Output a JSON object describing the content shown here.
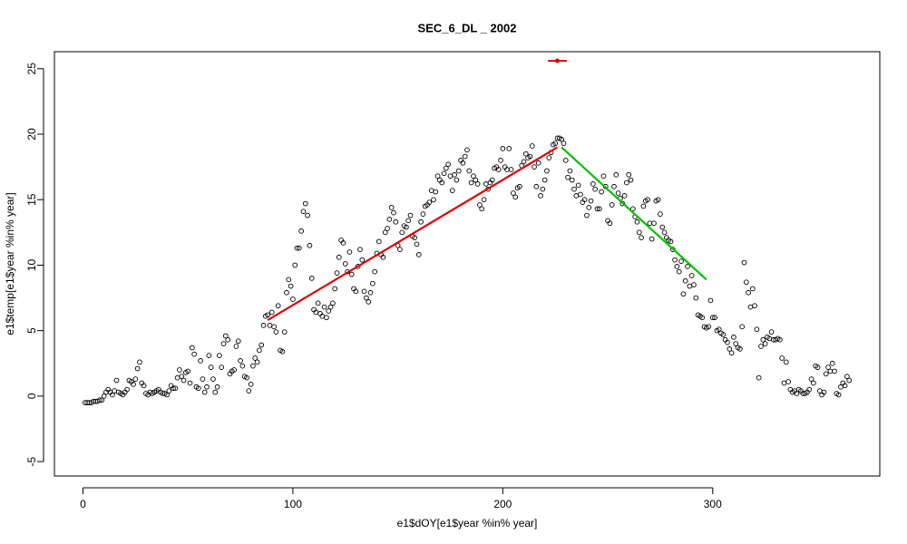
{
  "chart_data": {
    "type": "scatter",
    "title": "SEC_6_DL _ 2002",
    "x_label": "e1$dOY[e1$year %in% year]",
    "y_label": "e1$temp[e1$year %in% year]",
    "point_color": "#000000",
    "x": [
      1,
      2,
      3,
      4,
      5,
      6,
      7,
      8,
      9,
      10,
      11,
      12,
      13,
      14,
      15,
      16,
      17,
      18,
      19,
      20,
      21,
      22,
      23,
      24,
      25,
      26,
      27,
      28,
      29,
      30,
      31,
      32,
      33,
      34,
      35,
      36,
      37,
      38,
      39,
      40,
      41,
      42,
      43,
      44,
      45,
      46,
      47,
      48,
      49,
      50,
      51,
      52,
      53,
      54,
      55,
      56,
      57,
      58,
      59,
      60,
      61,
      62,
      63,
      64,
      65,
      66,
      67,
      68,
      69,
      70,
      71,
      72,
      73,
      74,
      75,
      76,
      77,
      78,
      79,
      80,
      81,
      82,
      83,
      84,
      85,
      86,
      87,
      88,
      89,
      90,
      91,
      92,
      93,
      94,
      95,
      96,
      97,
      98,
      99,
      100,
      101,
      102,
      103,
      104,
      105,
      106,
      107,
      108,
      109,
      110,
      111,
      112,
      113,
      114,
      115,
      116,
      117,
      118,
      119,
      120,
      121,
      122,
      123,
      124,
      125,
      126,
      127,
      128,
      129,
      130,
      131,
      132,
      133,
      134,
      135,
      136,
      137,
      138,
      139,
      140,
      141,
      142,
      143,
      144,
      145,
      146,
      147,
      148,
      149,
      150,
      151,
      152,
      153,
      154,
      155,
      156,
      157,
      158,
      159,
      160,
      161,
      162,
      163,
      164,
      165,
      166,
      167,
      168,
      169,
      170,
      171,
      172,
      173,
      174,
      175,
      176,
      177,
      178,
      179,
      180,
      181,
      182,
      183,
      184,
      185,
      186,
      187,
      188,
      189,
      190,
      191,
      192,
      193,
      194,
      195,
      196,
      197,
      198,
      199,
      200,
      201,
      202,
      203,
      204,
      205,
      206,
      207,
      208,
      209,
      210,
      211,
      212,
      213,
      214,
      215,
      216,
      217,
      218,
      219,
      220,
      221,
      222,
      223,
      224,
      225,
      226,
      227,
      228,
      229,
      230,
      231,
      232,
      233,
      234,
      235,
      236,
      237,
      238,
      239,
      240,
      241,
      242,
      243,
      244,
      245,
      246,
      247,
      248,
      249,
      250,
      251,
      252,
      253,
      254,
      255,
      256,
      257,
      258,
      259,
      260,
      261,
      262,
      263,
      264,
      265,
      266,
      267,
      268,
      269,
      270,
      271,
      272,
      273,
      274,
      275,
      276,
      277,
      278,
      279,
      280,
      281,
      282,
      283,
      284,
      285,
      286,
      287,
      288,
      289,
      290,
      291,
      292,
      293,
      294,
      295,
      296,
      297,
      298,
      299,
      300,
      301,
      302,
      303,
      304,
      305,
      306,
      307,
      308,
      309,
      310,
      311,
      312,
      313,
      314,
      315,
      316,
      317,
      318,
      319,
      320,
      321,
      322,
      323,
      324,
      325,
      326,
      327,
      328,
      329,
      330,
      331,
      332,
      333,
      334,
      335,
      336,
      337,
      338,
      339,
      340,
      341,
      342,
      343,
      344,
      345,
      346,
      347,
      348,
      349,
      350,
      351,
      352,
      353,
      354,
      355,
      356,
      357,
      358,
      359,
      360,
      361,
      362,
      363,
      364,
      365
    ],
    "values": [
      -0.5,
      -0.5,
      -0.5,
      -0.5,
      -0.4,
      -0.4,
      -0.4,
      -0.3,
      -0.3,
      0.0,
      0.3,
      0.5,
      0.3,
      0.1,
      0.4,
      1.2,
      0.3,
      0.2,
      0.1,
      0.3,
      0.5,
      1.2,
      1.1,
      0.9,
      1.3,
      2.1,
      2.6,
      1.0,
      0.8,
      0.2,
      0.1,
      0.3,
      0.2,
      0.3,
      0.4,
      0.5,
      0.3,
      0.2,
      0.2,
      0.1,
      0.4,
      0.8,
      0.6,
      0.6,
      1.4,
      2.0,
      1.5,
      1.2,
      1.8,
      1.9,
      1.0,
      3.7,
      3.2,
      0.7,
      0.6,
      2.7,
      1.3,
      0.3,
      0.7,
      3.1,
      2.2,
      1.3,
      0.3,
      0.7,
      3.1,
      2.2,
      4.0,
      4.6,
      4.3,
      1.7,
      1.9,
      2.0,
      3.8,
      4.2,
      2.7,
      2.3,
      1.5,
      1.4,
      0.4,
      0.9,
      2.3,
      2.9,
      2.6,
      3.5,
      3.9,
      5.4,
      6.1,
      6.2,
      5.4,
      6.4,
      5.3,
      4.9,
      6.9,
      3.5,
      3.4,
      4.9,
      7.9,
      8.9,
      8.4,
      7.4,
      10.0,
      11.3,
      11.3,
      12.6,
      14.1,
      14.7,
      13.8,
      11.5,
      9.0,
      6.6,
      6.4,
      7.1,
      6.3,
      6.1,
      6.8,
      6.0,
      6.5,
      6.8,
      7.1,
      8.2,
      9.4,
      10.6,
      11.9,
      11.7,
      10.1,
      9.5,
      11.0,
      9.3,
      8.2,
      8.0,
      9.9,
      11.2,
      10.4,
      8.0,
      7.5,
      7.2,
      7.9,
      8.6,
      9.5,
      10.9,
      11.8,
      10.8,
      10.6,
      12.5,
      12.8,
      13.5,
      14.4,
      14.0,
      13.3,
      11.5,
      11.2,
      12.5,
      13.0,
      12.9,
      13.4,
      13.8,
      12.2,
      12.1,
      11.6,
      10.8,
      13.3,
      13.9,
      14.5,
      14.6,
      14.8,
      15.7,
      15.0,
      15.6,
      16.8,
      16.5,
      16.3,
      17.0,
      17.4,
      17.7,
      16.8,
      15.7,
      16.9,
      16.5,
      17.2,
      18.0,
      17.8,
      18.3,
      18.8,
      17.2,
      16.3,
      16.8,
      16.5,
      16.2,
      14.6,
      14.3,
      15.0,
      16.2,
      15.8,
      16.3,
      16.5,
      17.4,
      17.5,
      17.3,
      18.0,
      18.9,
      17.5,
      17.3,
      18.9,
      17.3,
      15.5,
      15.2,
      15.9,
      16.0,
      17.6,
      17.9,
      18.5,
      18.2,
      18.3,
      19.1,
      17.5,
      16.0,
      17.8,
      15.3,
      15.8,
      16.5,
      17.2,
      18.2,
      18.6,
      19.2,
      19.3,
      19.7,
      19.7,
      19.6,
      19.3,
      18.0,
      16.7,
      17.2,
      16.5,
      15.8,
      15.3,
      16.1,
      15.4,
      14.8,
      15.0,
      13.8,
      14.4,
      14.9,
      16.2,
      15.8,
      14.3,
      14.3,
      15.6,
      16.8,
      16.0,
      13.4,
      13.2,
      14.6,
      16.0,
      16.9,
      15.5,
      15.1,
      14.7,
      15.3,
      16.3,
      16.9,
      16.5,
      14.3,
      13.7,
      13.3,
      12.5,
      12.1,
      14.5,
      14.9,
      15.0,
      13.2,
      12.0,
      13.2,
      14.9,
      15.0,
      13.9,
      12.9,
      12.5,
      12.1,
      11.9,
      11.8,
      11.2,
      10.4,
      9.9,
      9.5,
      10.3,
      7.8,
      8.8,
      9.9,
      8.4,
      9.2,
      8.5,
      7.5,
      6.2,
      6.1,
      6.0,
      5.3,
      5.2,
      5.3,
      7.3,
      6.0,
      6.0,
      5.0,
      5.1,
      4.8,
      4.7,
      4.3,
      4.1,
      3.6,
      3.3,
      4.5,
      4.0,
      3.7,
      3.6,
      5.3,
      10.2,
      8.7,
      7.9,
      6.8,
      8.2,
      6.9,
      5.1,
      1.4,
      3.8,
      4.3,
      4.0,
      4.5,
      4.4,
      4.9,
      4.3,
      4.3,
      4.4,
      4.3,
      2.9,
      1.0,
      2.6,
      1.1,
      0.5,
      0.3,
      0.4,
      0.2,
      0.5,
      0.4,
      0.2,
      0.2,
      0.3,
      0.5,
      1.3,
      1.0,
      2.3,
      2.2,
      0.4,
      0.1,
      0.3,
      1.7,
      2.2,
      1.9,
      2.5,
      1.9,
      0.2,
      0.1,
      0.7,
      1.0,
      0.8,
      1.5,
      1.2
    ],
    "lines": [
      {
        "color": "#e00000",
        "x": [
          88,
          226
        ],
        "values": [
          5.8,
          19.0
        ]
      },
      {
        "color": "#00c000",
        "x": [
          228,
          297
        ],
        "values": [
          19.0,
          8.9
        ]
      }
    ],
    "breakpoint": {
      "color": "#e00000",
      "x": 226,
      "y": 25.6,
      "xerr": [
        221.5,
        230.5
      ]
    },
    "xlim": [
      -13.6,
      379.6
    ],
    "ylim": [
      -6.1,
      26.3
    ],
    "xticks": [
      0,
      100,
      200,
      300
    ],
    "yticks": [
      -5,
      0,
      5,
      10,
      15,
      20,
      25
    ]
  }
}
